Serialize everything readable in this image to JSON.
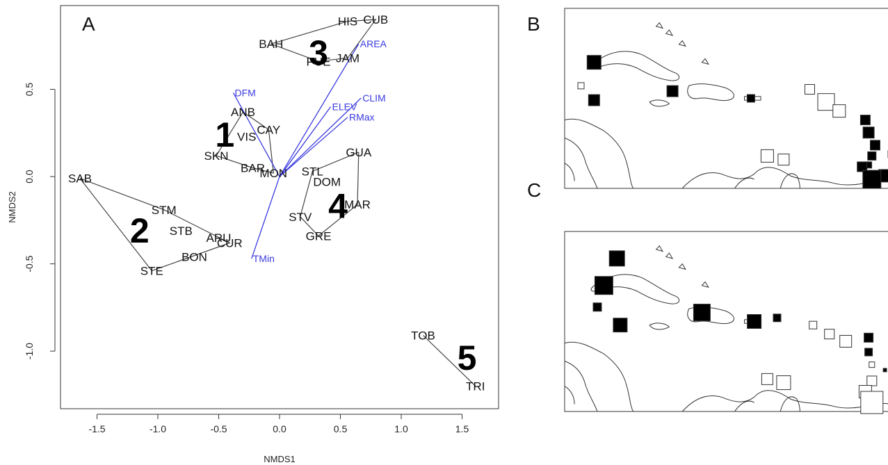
{
  "chart_data": [
    {
      "type": "scatter",
      "panel_letter": "A",
      "xlabel": "NMDS1",
      "ylabel": "NMDS2",
      "xlim": [
        -1.8,
        1.8
      ],
      "ylim": [
        -1.33,
        0.98
      ],
      "x_ticks": [
        -1.5,
        -1.0,
        -0.5,
        0.0,
        0.5,
        1.0,
        1.5
      ],
      "x_tick_labels": [
        "-1.5",
        "-1.0",
        "-0.5",
        "0.0",
        "0.5",
        "1.0",
        "1.5"
      ],
      "y_ticks": [
        -1.0,
        -0.5,
        0.0,
        0.5
      ],
      "y_tick_labels": [
        "-1.0",
        "-0.5",
        "0.0",
        "0.5"
      ],
      "sites": [
        {
          "label": "HIS",
          "x": 0.56,
          "y": 0.89
        },
        {
          "label": "CUB",
          "x": 0.79,
          "y": 0.9
        },
        {
          "label": "BAH",
          "x": -0.07,
          "y": 0.76
        },
        {
          "label": "PUE",
          "x": 0.32,
          "y": 0.66
        },
        {
          "label": "JAM",
          "x": 0.56,
          "y": 0.68
        },
        {
          "label": "ANB",
          "x": -0.3,
          "y": 0.37
        },
        {
          "label": "CAY",
          "x": -0.09,
          "y": 0.27
        },
        {
          "label": "VIS",
          "x": -0.27,
          "y": 0.23
        },
        {
          "label": "SKN",
          "x": -0.52,
          "y": 0.12
        },
        {
          "label": "BAR",
          "x": -0.22,
          "y": 0.05
        },
        {
          "label": "MON",
          "x": -0.05,
          "y": 0.02
        },
        {
          "label": "SAB",
          "x": -1.64,
          "y": -0.01
        },
        {
          "label": "STM",
          "x": -0.95,
          "y": -0.19
        },
        {
          "label": "STB",
          "x": -0.81,
          "y": -0.31
        },
        {
          "label": "ARU",
          "x": -0.5,
          "y": -0.35
        },
        {
          "label": "CUR",
          "x": -0.41,
          "y": -0.38
        },
        {
          "label": "BON",
          "x": -0.7,
          "y": -0.46
        },
        {
          "label": "STE",
          "x": -1.05,
          "y": -0.54
        },
        {
          "label": "GUA",
          "x": 0.65,
          "y": 0.14
        },
        {
          "label": "STL",
          "x": 0.27,
          "y": 0.03
        },
        {
          "label": "DOM",
          "x": 0.39,
          "y": -0.03
        },
        {
          "label": "MAR",
          "x": 0.64,
          "y": -0.16
        },
        {
          "label": "STV",
          "x": 0.17,
          "y": -0.23
        },
        {
          "label": "GRE",
          "x": 0.32,
          "y": -0.34
        },
        {
          "label": "TOB",
          "x": 1.18,
          "y": -0.91
        },
        {
          "label": "TRI",
          "x": 1.61,
          "y": -1.2
        }
      ],
      "hulls": [
        [
          "HIS",
          "CUB",
          "JAM",
          "PUE",
          "BAH",
          "HIS"
        ],
        [
          "ANB",
          "CAY",
          "MON",
          "BAR",
          "SKN",
          "ANB"
        ],
        [
          "SAB",
          "STM",
          "CUR",
          "STE",
          "SAB"
        ],
        [
          "GUA",
          "MAR",
          "GRE",
          "STV",
          "STL",
          "GUA"
        ],
        [
          "TOB",
          "TRI"
        ]
      ],
      "vectors": [
        {
          "label": "DFM",
          "x": -0.38,
          "y": 0.48
        },
        {
          "label": "AREA",
          "x": 0.65,
          "y": 0.76
        },
        {
          "label": "ELEV",
          "x": 0.42,
          "y": 0.4
        },
        {
          "label": "CLIM",
          "x": 0.67,
          "y": 0.45
        },
        {
          "label": "RMax",
          "x": 0.56,
          "y": 0.34
        },
        {
          "label": "TMin",
          "x": -0.23,
          "y": -0.47
        }
      ],
      "clusters": [
        {
          "label": "1",
          "x": -0.45,
          "y": 0.24
        },
        {
          "label": "2",
          "x": -1.15,
          "y": -0.31
        },
        {
          "label": "3",
          "x": 0.32,
          "y": 0.71
        },
        {
          "label": "4",
          "x": 0.48,
          "y": -0.17
        },
        {
          "label": "5",
          "x": 1.54,
          "y": -1.04
        }
      ]
    },
    {
      "type": "map",
      "panel_letter": "B",
      "markers": [
        {
          "fill": "black",
          "size": 20,
          "lon": 0.09,
          "lat": 0.3
        },
        {
          "fill": "white",
          "size": 9,
          "lon": 0.05,
          "lat": 0.43
        },
        {
          "fill": "black",
          "size": 16,
          "lon": 0.09,
          "lat": 0.51
        },
        {
          "fill": "black",
          "size": 16,
          "lon": 0.33,
          "lat": 0.46
        },
        {
          "fill": "black",
          "size": 11,
          "lon": 0.57,
          "lat": 0.5
        },
        {
          "fill": "white",
          "size": 14,
          "lon": 0.75,
          "lat": 0.45
        },
        {
          "fill": "white",
          "size": 24,
          "lon": 0.8,
          "lat": 0.52
        },
        {
          "fill": "white",
          "size": 18,
          "lon": 0.84,
          "lat": 0.57
        },
        {
          "fill": "black",
          "size": 14,
          "lon": 0.92,
          "lat": 0.62
        },
        {
          "fill": "black",
          "size": 16,
          "lon": 0.93,
          "lat": 0.69
        },
        {
          "fill": "black",
          "size": 14,
          "lon": 0.95,
          "lat": 0.76
        },
        {
          "fill": "black",
          "size": 12,
          "lon": 0.94,
          "lat": 0.82
        },
        {
          "fill": "black",
          "size": 9,
          "lon": 0.93,
          "lat": 0.87
        },
        {
          "fill": "white",
          "size": 10,
          "lon": 1.0,
          "lat": 0.81
        },
        {
          "fill": "white",
          "size": 18,
          "lon": 0.62,
          "lat": 0.82
        },
        {
          "fill": "white",
          "size": 16,
          "lon": 0.67,
          "lat": 0.84
        },
        {
          "fill": "black",
          "size": 14,
          "lon": 0.91,
          "lat": 0.88
        },
        {
          "fill": "black",
          "size": 18,
          "lon": 0.98,
          "lat": 0.93
        },
        {
          "fill": "black",
          "size": 26,
          "lon": 0.94,
          "lat": 0.95
        }
      ]
    },
    {
      "type": "map",
      "panel_letter": "C",
      "markers": [
        {
          "fill": "black",
          "size": 22,
          "lon": 0.16,
          "lat": 0.15
        },
        {
          "fill": "black",
          "size": 26,
          "lon": 0.12,
          "lat": 0.3
        },
        {
          "fill": "black",
          "size": 12,
          "lon": 0.1,
          "lat": 0.42
        },
        {
          "fill": "black",
          "size": 20,
          "lon": 0.17,
          "lat": 0.52
        },
        {
          "fill": "black",
          "size": 24,
          "lon": 0.42,
          "lat": 0.45
        },
        {
          "fill": "black",
          "size": 20,
          "lon": 0.58,
          "lat": 0.5
        },
        {
          "fill": "black",
          "size": 11,
          "lon": 0.65,
          "lat": 0.48
        },
        {
          "fill": "white",
          "size": 11,
          "lon": 0.76,
          "lat": 0.52
        },
        {
          "fill": "white",
          "size": 14,
          "lon": 0.81,
          "lat": 0.57
        },
        {
          "fill": "white",
          "size": 17,
          "lon": 0.86,
          "lat": 0.61
        },
        {
          "fill": "black",
          "size": 13,
          "lon": 0.93,
          "lat": 0.59
        },
        {
          "fill": "black",
          "size": 11,
          "lon": 0.93,
          "lat": 0.67
        },
        {
          "fill": "white",
          "size": 8,
          "lon": 0.94,
          "lat": 0.74
        },
        {
          "fill": "white",
          "size": 16,
          "lon": 0.62,
          "lat": 0.82
        },
        {
          "fill": "white",
          "size": 20,
          "lon": 0.67,
          "lat": 0.84
        },
        {
          "fill": "white",
          "size": 14,
          "lon": 0.94,
          "lat": 0.83
        },
        {
          "fill": "white",
          "size": 18,
          "lon": 0.92,
          "lat": 0.89
        },
        {
          "fill": "white",
          "size": 32,
          "lon": 0.94,
          "lat": 0.95
        },
        {
          "fill": "black",
          "size": 5,
          "lon": 0.98,
          "lat": 0.77
        }
      ]
    }
  ]
}
